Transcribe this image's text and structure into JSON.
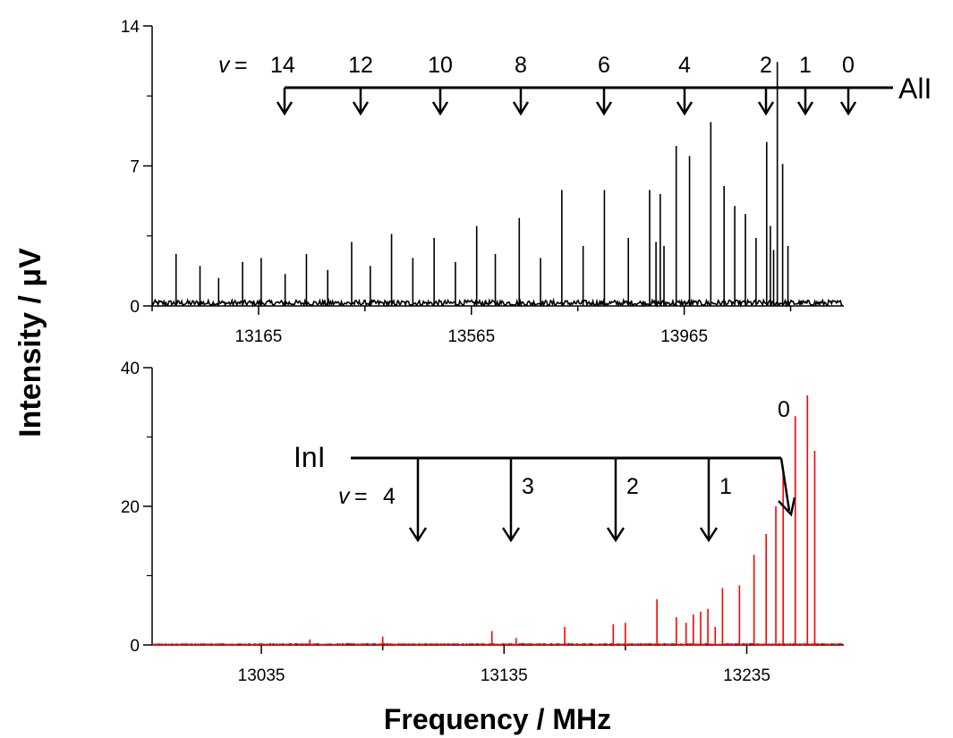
{
  "chart_data": [
    {
      "type": "line",
      "panel": "top",
      "ylabel": "Intensity / μV",
      "ylim": [
        0,
        14
      ],
      "xlim": [
        12965,
        14265
      ],
      "y_ticks": [
        0,
        7,
        14
      ],
      "x_tick_labels": [
        13165,
        13565,
        13965
      ],
      "color": "#000000",
      "noise_level": 0.3,
      "peaks_x": [
        13010,
        13055,
        13090,
        13135,
        13170,
        13215,
        13255,
        13295,
        13340,
        13375,
        13415,
        13455,
        13495,
        13535,
        13575,
        13610,
        13655,
        13695,
        13735,
        13775,
        13815,
        13860,
        13900,
        13912,
        13920,
        13927,
        13950,
        13975,
        14015,
        14040,
        14060,
        14080,
        14100,
        14120,
        14127,
        14133,
        14140,
        14150,
        14160
      ],
      "peaks_y": [
        2.6,
        2.0,
        1.4,
        2.2,
        2.4,
        1.6,
        2.6,
        1.8,
        3.2,
        2.0,
        3.6,
        2.4,
        3.4,
        2.2,
        4.0,
        2.6,
        4.4,
        2.4,
        5.8,
        3.0,
        5.8,
        3.4,
        5.8,
        3.2,
        5.6,
        3.0,
        8.0,
        7.5,
        9.2,
        6.0,
        5.0,
        4.6,
        3.4,
        8.2,
        4.0,
        2.8,
        12.2,
        7.1,
        3.0
      ],
      "annotation": {
        "label": "AlI",
        "v_prefix": "v = ",
        "arrow_labels": [
          "14",
          "12",
          "10",
          "8",
          "6",
          "4",
          "2",
          "1",
          "0"
        ],
        "arrow_x": [
          13210,
          13360,
          13510,
          13660,
          13810,
          13960,
          14115,
          14190,
          14270
        ]
      }
    },
    {
      "type": "line",
      "panel": "bottom",
      "ylabel": "Intensity / μV",
      "xlabel": "Frequency / MHz",
      "ylim": [
        0,
        40
      ],
      "xlim": [
        12990,
        13275
      ],
      "y_ticks": [
        0,
        20,
        40
      ],
      "x_tick_labels": [
        13035,
        13135,
        13235
      ],
      "color": "#ff0000",
      "noise_level": 0.15,
      "peaks_x": [
        13055,
        13085,
        13130,
        13140,
        13160,
        13180,
        13185,
        13198,
        13206,
        13210,
        13213,
        13216,
        13219,
        13222,
        13225,
        13232,
        13238,
        13243,
        13247,
        13250,
        13255,
        13260,
        13263
      ],
      "peaks_y": [
        0.8,
        1.2,
        2.0,
        1.0,
        2.6,
        3.0,
        3.2,
        6.6,
        4.0,
        3.2,
        4.4,
        4.8,
        5.2,
        2.6,
        8.2,
        8.6,
        13.0,
        16.0,
        20.0,
        25.0,
        33.0,
        36.0,
        28.0
      ],
      "annotation": {
        "label": "InI",
        "v_prefix": "v = ",
        "arrow_labels": [
          "4",
          "3",
          "2",
          "1",
          "0"
        ],
        "arrow_x": [
          13100,
          13140,
          13180,
          13220,
          13250
        ]
      }
    }
  ]
}
